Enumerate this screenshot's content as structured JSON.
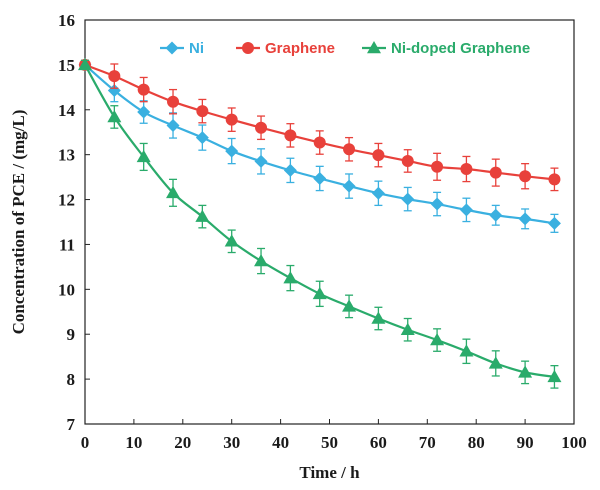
{
  "chart_data": {
    "type": "line",
    "title": "",
    "xlabel": "Time / h",
    "ylabel": "Concentration of PCE / (mg/L)",
    "xlim": [
      0,
      100
    ],
    "ylim": [
      7,
      16
    ],
    "xticks": [
      0,
      10,
      20,
      30,
      40,
      50,
      60,
      70,
      80,
      90,
      100
    ],
    "yticks": [
      7,
      8,
      9,
      10,
      11,
      12,
      13,
      14,
      15,
      16
    ],
    "grid": false,
    "legend_position": "top-right",
    "x": [
      0,
      6,
      12,
      18,
      24,
      30,
      36,
      42,
      48,
      54,
      60,
      66,
      72,
      78,
      84,
      90,
      96
    ],
    "series": [
      {
        "name": "Ni",
        "color": "#3ab0e0",
        "marker": "diamond",
        "values": [
          15.0,
          14.43,
          13.95,
          13.65,
          13.38,
          13.08,
          12.85,
          12.65,
          12.47,
          12.3,
          12.14,
          12.01,
          11.9,
          11.77,
          11.65,
          11.57,
          11.47
        ],
        "errors": [
          0.1,
          0.25,
          0.25,
          0.28,
          0.28,
          0.28,
          0.28,
          0.27,
          0.27,
          0.27,
          0.27,
          0.26,
          0.26,
          0.26,
          0.22,
          0.22,
          0.2
        ]
      },
      {
        "name": "Graphene",
        "color": "#e8413b",
        "marker": "circle",
        "values": [
          15.0,
          14.75,
          14.45,
          14.18,
          13.97,
          13.78,
          13.6,
          13.43,
          13.27,
          13.12,
          12.99,
          12.86,
          12.73,
          12.68,
          12.6,
          12.52,
          12.45
        ],
        "errors": [
          0.1,
          0.27,
          0.27,
          0.27,
          0.26,
          0.26,
          0.26,
          0.26,
          0.26,
          0.26,
          0.26,
          0.25,
          0.3,
          0.28,
          0.3,
          0.28,
          0.25
        ]
      },
      {
        "name": "Ni-doped Graphene",
        "color": "#2aab6b",
        "marker": "triangle",
        "values": [
          15.0,
          13.84,
          12.95,
          12.15,
          11.62,
          11.07,
          10.63,
          10.25,
          9.9,
          9.62,
          9.35,
          9.1,
          8.87,
          8.62,
          8.35,
          8.15,
          8.05
        ],
        "errors": [
          0.1,
          0.25,
          0.3,
          0.3,
          0.25,
          0.25,
          0.28,
          0.28,
          0.28,
          0.25,
          0.25,
          0.25,
          0.25,
          0.27,
          0.28,
          0.25,
          0.25
        ]
      }
    ]
  }
}
